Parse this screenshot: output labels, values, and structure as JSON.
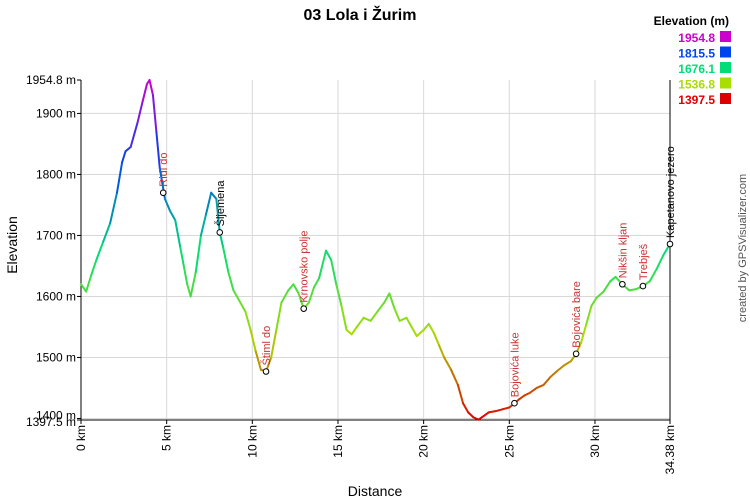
{
  "chart_data": {
    "type": "line",
    "title": "03 Lola i Žurim",
    "xlabel": "Distance",
    "ylabel": "Elevation",
    "credit": "created by GPSVisualizer.com",
    "xlim": [
      0,
      34.38
    ],
    "ylim": [
      1397.5,
      1954.8
    ],
    "x_ticks": [
      {
        "value": 0,
        "label": "0 km"
      },
      {
        "value": 5,
        "label": "5 km"
      },
      {
        "value": 10,
        "label": "10 km"
      },
      {
        "value": 15,
        "label": "15 km"
      },
      {
        "value": 20,
        "label": "20 km"
      },
      {
        "value": 25,
        "label": "25 km"
      },
      {
        "value": 30,
        "label": "30 km"
      },
      {
        "value": 34.38,
        "label": "34.38 km"
      }
    ],
    "y_ticks": [
      {
        "value": 1397.5,
        "label": "1397.5 m"
      },
      {
        "value": 1400,
        "label": "1400 m"
      },
      {
        "value": 1500,
        "label": "1500 m"
      },
      {
        "value": 1600,
        "label": "1600 m"
      },
      {
        "value": 1700,
        "label": "1700 m"
      },
      {
        "value": 1800,
        "label": "1800 m"
      },
      {
        "value": 1900,
        "label": "1900 m"
      },
      {
        "value": 1954.8,
        "label": "1954.8 m"
      }
    ],
    "legend": {
      "title": "Elevation (m)",
      "position": "top-right",
      "entries": [
        {
          "label": "1954.8",
          "color": "#cc00cc"
        },
        {
          "label": "1815.5",
          "color": "#0044ee"
        },
        {
          "label": "1676.1",
          "color": "#00dd77"
        },
        {
          "label": "1536.8",
          "color": "#aadd00"
        },
        {
          "label": "1397.5",
          "color": "#dd0000"
        }
      ]
    },
    "series": [
      {
        "points": [
          [
            0.0,
            1620
          ],
          [
            0.3,
            1608
          ],
          [
            0.6,
            1635
          ],
          [
            0.9,
            1660
          ],
          [
            1.3,
            1690
          ],
          [
            1.7,
            1720
          ],
          [
            2.1,
            1770
          ],
          [
            2.4,
            1820
          ],
          [
            2.6,
            1838
          ],
          [
            2.9,
            1845
          ],
          [
            3.3,
            1885
          ],
          [
            3.6,
            1920
          ],
          [
            3.85,
            1948
          ],
          [
            4.0,
            1954.8
          ],
          [
            4.2,
            1930
          ],
          [
            4.4,
            1870
          ],
          [
            4.6,
            1810
          ],
          [
            4.9,
            1760
          ],
          [
            5.2,
            1740
          ],
          [
            5.5,
            1725
          ],
          [
            5.8,
            1680
          ],
          [
            6.0,
            1650
          ],
          [
            6.2,
            1620
          ],
          [
            6.4,
            1600
          ],
          [
            6.7,
            1640
          ],
          [
            7.0,
            1700
          ],
          [
            7.3,
            1735
          ],
          [
            7.6,
            1770
          ],
          [
            7.9,
            1760
          ],
          [
            8.1,
            1705
          ],
          [
            8.3,
            1680
          ],
          [
            8.6,
            1640
          ],
          [
            8.9,
            1610
          ],
          [
            9.3,
            1590
          ],
          [
            9.6,
            1575
          ],
          [
            9.9,
            1545
          ],
          [
            10.2,
            1510
          ],
          [
            10.5,
            1480
          ],
          [
            10.8,
            1477
          ],
          [
            11.1,
            1500
          ],
          [
            11.4,
            1545
          ],
          [
            11.7,
            1590
          ],
          [
            12.1,
            1610
          ],
          [
            12.4,
            1620
          ],
          [
            12.7,
            1605
          ],
          [
            13.0,
            1580
          ],
          [
            13.3,
            1590
          ],
          [
            13.6,
            1615
          ],
          [
            13.9,
            1630
          ],
          [
            14.3,
            1675
          ],
          [
            14.6,
            1660
          ],
          [
            14.9,
            1620
          ],
          [
            15.2,
            1585
          ],
          [
            15.5,
            1545
          ],
          [
            15.8,
            1538
          ],
          [
            16.1,
            1550
          ],
          [
            16.5,
            1565
          ],
          [
            16.9,
            1560
          ],
          [
            17.3,
            1575
          ],
          [
            17.7,
            1590
          ],
          [
            18.0,
            1605
          ],
          [
            18.3,
            1580
          ],
          [
            18.6,
            1560
          ],
          [
            19.0,
            1565
          ],
          [
            19.3,
            1550
          ],
          [
            19.6,
            1535
          ],
          [
            20.0,
            1545
          ],
          [
            20.3,
            1555
          ],
          [
            20.6,
            1540
          ],
          [
            20.9,
            1520
          ],
          [
            21.2,
            1500
          ],
          [
            21.6,
            1480
          ],
          [
            22.0,
            1455
          ],
          [
            22.3,
            1425
          ],
          [
            22.6,
            1410
          ],
          [
            22.9,
            1402
          ],
          [
            23.2,
            1398
          ],
          [
            23.5,
            1404
          ],
          [
            23.8,
            1410
          ],
          [
            24.2,
            1412
          ],
          [
            24.6,
            1415
          ],
          [
            25.0,
            1418
          ],
          [
            25.3,
            1425
          ],
          [
            25.6,
            1432
          ],
          [
            25.9,
            1438
          ],
          [
            26.2,
            1442
          ],
          [
            26.6,
            1450
          ],
          [
            27.0,
            1455
          ],
          [
            27.4,
            1468
          ],
          [
            27.8,
            1478
          ],
          [
            28.2,
            1487
          ],
          [
            28.6,
            1494
          ],
          [
            28.9,
            1506
          ],
          [
            29.2,
            1525
          ],
          [
            29.5,
            1555
          ],
          [
            29.8,
            1585
          ],
          [
            30.1,
            1598
          ],
          [
            30.5,
            1608
          ],
          [
            30.9,
            1625
          ],
          [
            31.2,
            1632
          ],
          [
            31.6,
            1620
          ],
          [
            32.0,
            1610
          ],
          [
            32.4,
            1612
          ],
          [
            32.8,
            1617
          ],
          [
            33.2,
            1625
          ],
          [
            33.6,
            1645
          ],
          [
            34.0,
            1668
          ],
          [
            34.38,
            1686
          ]
        ]
      }
    ],
    "waypoints": [
      {
        "name": "Ridi do",
        "x": 4.8,
        "y": 1770,
        "color": "#cc3333"
      },
      {
        "name": "Šljemena",
        "x": 8.1,
        "y": 1705,
        "color": "#000000"
      },
      {
        "name": "Štiml do",
        "x": 10.8,
        "y": 1477,
        "color": "#cc3333"
      },
      {
        "name": "Krnovsko polje",
        "x": 13.0,
        "y": 1580,
        "color": "#cc3333"
      },
      {
        "name": "Bojovića luke",
        "x": 25.3,
        "y": 1425,
        "color": "#cc3333"
      },
      {
        "name": "Bojovića bare",
        "x": 28.9,
        "y": 1506,
        "color": "#cc3333"
      },
      {
        "name": "Nikšin kljan",
        "x": 31.6,
        "y": 1620,
        "color": "#cc3333"
      },
      {
        "name": "Trebješ",
        "x": 32.8,
        "y": 1617,
        "color": "#cc3333"
      },
      {
        "name": "Kapetanovo jezero",
        "x": 34.38,
        "y": 1686,
        "color": "#000000"
      }
    ]
  }
}
